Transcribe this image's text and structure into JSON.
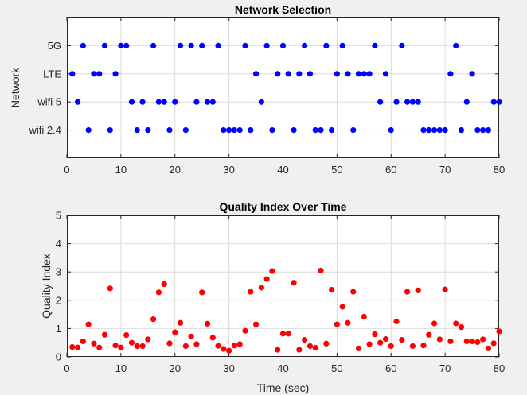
{
  "chart_data": [
    {
      "type": "scatter",
      "title": "Network Selection",
      "xlabel": "",
      "ylabel": "Network",
      "xlim": [
        0,
        80
      ],
      "xticks": [
        "0",
        "10",
        "20",
        "30",
        "40",
        "50",
        "60",
        "70",
        "80"
      ],
      "categories": [
        "wifi 2.4",
        "wifi 5",
        "LTE",
        "5G"
      ],
      "ylim_levels": [
        0,
        5
      ],
      "grid": true,
      "marker_color": "#0000ff",
      "x": [
        1,
        2,
        3,
        4,
        5,
        6,
        7,
        8,
        9,
        10,
        11,
        12,
        13,
        14,
        15,
        16,
        17,
        18,
        19,
        20,
        21,
        22,
        23,
        24,
        25,
        26,
        27,
        28,
        29,
        30,
        31,
        32,
        33,
        34,
        35,
        36,
        37,
        38,
        39,
        40,
        41,
        42,
        43,
        44,
        45,
        46,
        47,
        48,
        49,
        50,
        51,
        52,
        53,
        54,
        55,
        56,
        57,
        58,
        59,
        60,
        61,
        62,
        63,
        64,
        65,
        66,
        67,
        68,
        69,
        70,
        71,
        72,
        73,
        74,
        75,
        76,
        77,
        78,
        79,
        80
      ],
      "values": [
        "LTE",
        "wifi 5",
        "5G",
        "wifi 2.4",
        "LTE",
        "LTE",
        "5G",
        "wifi 2.4",
        "LTE",
        "5G",
        "5G",
        "wifi 5",
        "wifi 2.4",
        "wifi 5",
        "wifi 2.4",
        "5G",
        "wifi 5",
        "wifi 5",
        "wifi 2.4",
        "wifi 5",
        "5G",
        "wifi 2.4",
        "5G",
        "wifi 5",
        "5G",
        "wifi 5",
        "wifi 5",
        "5G",
        "wifi 2.4",
        "wifi 2.4",
        "wifi 2.4",
        "wifi 2.4",
        "5G",
        "wifi 2.4",
        "LTE",
        "wifi 5",
        "5G",
        "wifi 2.4",
        "LTE",
        "5G",
        "LTE",
        "wifi 2.4",
        "LTE",
        "5G",
        "LTE",
        "wifi 2.4",
        "wifi 2.4",
        "5G",
        "wifi 2.4",
        "LTE",
        "5G",
        "LTE",
        "wifi 2.4",
        "LTE",
        "LTE",
        "LTE",
        "5G",
        "wifi 5",
        "LTE",
        "wifi 2.4",
        "wifi 5",
        "5G",
        "wifi 5",
        "wifi 5",
        "wifi 5",
        "wifi 2.4",
        "wifi 2.4",
        "wifi 2.4",
        "wifi 2.4",
        "wifi 2.4",
        "LTE",
        "5G",
        "wifi 2.4",
        "wifi 5",
        "LTE",
        "wifi 2.4",
        "wifi 2.4",
        "wifi 2.4",
        "wifi 5",
        "wifi 5"
      ]
    },
    {
      "type": "scatter",
      "title": "Quality Index Over Time",
      "xlabel": "Time (sec)",
      "ylabel": "Quality Index",
      "xlim": [
        0,
        80
      ],
      "ylim": [
        0,
        5
      ],
      "xticks": [
        "0",
        "10",
        "20",
        "30",
        "40",
        "50",
        "60",
        "70",
        "80"
      ],
      "yticks": [
        "0",
        "1",
        "2",
        "3",
        "4",
        "5"
      ],
      "grid": true,
      "marker_color": "#ff0000",
      "x": [
        1,
        2,
        3,
        4,
        5,
        6,
        7,
        8,
        9,
        10,
        11,
        12,
        13,
        14,
        15,
        16,
        17,
        18,
        19,
        20,
        21,
        22,
        23,
        24,
        25,
        26,
        27,
        28,
        29,
        30,
        31,
        32,
        33,
        34,
        35,
        36,
        37,
        38,
        39,
        40,
        41,
        42,
        43,
        44,
        45,
        46,
        47,
        48,
        49,
        50,
        51,
        52,
        53,
        54,
        55,
        56,
        57,
        58,
        59,
        60,
        61,
        62,
        63,
        64,
        65,
        66,
        67,
        68,
        69,
        70,
        71,
        72,
        73,
        74,
        75,
        76,
        77,
        78,
        79,
        80
      ],
      "y": [
        0.35,
        0.33,
        0.55,
        1.15,
        0.47,
        0.33,
        0.78,
        2.42,
        0.4,
        0.33,
        0.77,
        0.5,
        0.38,
        0.38,
        0.62,
        1.33,
        2.28,
        2.57,
        0.48,
        0.87,
        1.2,
        0.38,
        0.72,
        0.45,
        2.28,
        1.17,
        0.68,
        0.39,
        0.28,
        0.22,
        0.4,
        0.45,
        0.92,
        2.3,
        1.15,
        2.45,
        2.75,
        3.03,
        0.25,
        0.82,
        0.82,
        2.62,
        0.25,
        0.6,
        0.38,
        0.32,
        3.05,
        0.47,
        2.37,
        1.15,
        1.77,
        1.2,
        2.3,
        0.3,
        1.42,
        0.45,
        0.8,
        0.5,
        0.63,
        0.38,
        1.25,
        0.6,
        2.3,
        0.38,
        2.35,
        0.4,
        0.78,
        1.18,
        0.62,
        2.38,
        0.55,
        1.18,
        1.05,
        0.55,
        0.55,
        0.52,
        0.62,
        0.3,
        0.48,
        0.9
      ]
    }
  ]
}
